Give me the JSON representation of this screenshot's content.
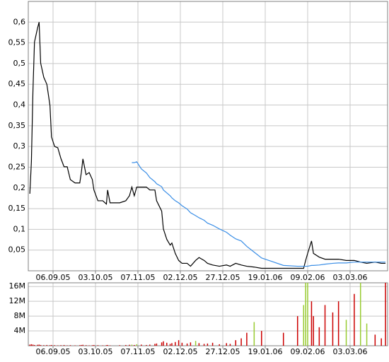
{
  "chart_data": [
    {
      "type": "line",
      "x": [
        "22.08.05",
        "23.08.05",
        "24.08.05",
        "25.08.05",
        "27.08.05",
        "28.08.05",
        "29.08.05",
        "31.08.05",
        "02.09.05",
        "04.09.05",
        "05.09.05",
        "07.09.05",
        "09.09.05",
        "11.09.05",
        "13.09.05",
        "15.09.05",
        "17.09.05",
        "20.09.05",
        "23.09.05",
        "24.09.05",
        "25.09.05",
        "27.09.05",
        "29.09.05",
        "01.10.05",
        "02.10.05",
        "05.10.05",
        "09.10.05",
        "12.10.05",
        "13.10.05",
        "15.10.05",
        "23.10.05",
        "28.10.05",
        "31.10.05",
        "02.11.05",
        "04.11.05",
        "06.11.05",
        "09.11.05",
        "12.11.05",
        "14.11.05",
        "17.11.05",
        "18.11.05",
        "21.11.05",
        "22.11.05",
        "24.11.05",
        "26.11.05",
        "27.11.05",
        "29.11.05",
        "01.12.05",
        "03.12.05",
        "06.12.05",
        "08.12.05",
        "11.12.05",
        "13.12.05",
        "16.12.05",
        "18.12.05",
        "21.12.05",
        "25.12.05",
        "29.12.05",
        "31.12.05",
        "03.01.06",
        "06.01.06",
        "09.01.06",
        "13.01.06",
        "17.01.06",
        "28.01.06",
        "04.02.06",
        "07.02.06",
        "08.02.06",
        "09.02.06",
        "11.02.06",
        "12.02.06",
        "15.02.06",
        "18.02.06",
        "22.02.06",
        "25.02.06",
        "01.03.06",
        "05.03.06",
        "08.03.06",
        "11.03.06",
        "15.03.06",
        "18.03.06",
        "20.03.06"
      ],
      "series": [
        {
          "color": "#000000",
          "values": [
            0.186,
            0.263,
            0.433,
            0.552,
            0.586,
            0.6,
            0.501,
            0.467,
            0.45,
            0.399,
            0.323,
            0.3,
            0.297,
            0.271,
            0.251,
            0.251,
            0.22,
            0.212,
            0.212,
            0.237,
            0.27,
            0.232,
            0.237,
            0.22,
            0.195,
            0.169,
            0.169,
            0.161,
            0.195,
            0.164,
            0.164,
            0.169,
            0.181,
            0.202,
            0.181,
            0.202,
            0.202,
            0.202,
            0.195,
            0.195,
            0.169,
            0.144,
            0.101,
            0.076,
            0.062,
            0.067,
            0.042,
            0.025,
            0.018,
            0.018,
            0.011,
            0.025,
            0.032,
            0.025,
            0.018,
            0.014,
            0.011,
            0.014,
            0.011,
            0.018,
            0.014,
            0.011,
            0.009,
            0.006,
            0.006,
            0.006,
            0.006,
            0.025,
            0.042,
            0.072,
            0.042,
            0.033,
            0.028,
            0.028,
            0.028,
            0.025,
            0.025,
            0.021,
            0.018,
            0.021,
            0.018,
            0.018
          ]
        },
        {
          "color": "#3a8ee6",
          "values": [
            null,
            null,
            null,
            null,
            null,
            null,
            null,
            null,
            null,
            null,
            null,
            null,
            null,
            null,
            null,
            null,
            null,
            null,
            null,
            null,
            null,
            null,
            null,
            null,
            null,
            null,
            null,
            null,
            null,
            null,
            null,
            null,
            null,
            0.261,
            0.261,
            0.263,
            0.246,
            0.236,
            0.225,
            0.215,
            0.21,
            0.203,
            0.195,
            0.188,
            0.181,
            0.176,
            0.169,
            0.164,
            0.157,
            0.149,
            0.14,
            0.133,
            0.128,
            0.122,
            0.115,
            0.11,
            0.101,
            0.093,
            0.086,
            0.077,
            0.072,
            0.059,
            0.045,
            0.031,
            0.013,
            0.011,
            0.011,
            0.011,
            0.011,
            0.013,
            0.013,
            0.014,
            0.016,
            0.018,
            0.019,
            0.019,
            0.021,
            0.021,
            0.021,
            0.021,
            0.021,
            0.021
          ]
        }
      ],
      "xlim": [
        "21.08.05",
        "21.03.06"
      ],
      "xticks": [
        "06.09.05",
        "03.10.05",
        "07.11.05",
        "02.12.05",
        "27.12.05",
        "19.01.06",
        "09.02.06",
        "03.03.06"
      ],
      "ylim": [
        0,
        0.65
      ],
      "yticks": [
        {
          "value": 0.05,
          "label": "0,05"
        },
        {
          "value": 0.1,
          "label": "0,1"
        },
        {
          "value": 0.15,
          "label": "0,15"
        },
        {
          "value": 0.2,
          "label": "0,2"
        },
        {
          "value": 0.25,
          "label": "0,25"
        },
        {
          "value": 0.3,
          "label": "0,3"
        },
        {
          "value": 0.35,
          "label": "0,35"
        },
        {
          "value": 0.4,
          "label": "0,4"
        },
        {
          "value": 0.45,
          "label": "0,45"
        },
        {
          "value": 0.5,
          "label": "0,5"
        },
        {
          "value": 0.55,
          "label": "0,55"
        },
        {
          "value": 0.6,
          "label": "0,6"
        }
      ],
      "grid": true
    },
    {
      "type": "bar",
      "x": [
        "22.08.05",
        "23.08.05",
        "24.08.05",
        "25.08.05",
        "27.08.05",
        "28.08.05",
        "29.08.05",
        "31.08.05",
        "02.09.05",
        "04.09.05",
        "05.09.05",
        "07.09.05",
        "09.09.05",
        "11.09.05",
        "13.09.05",
        "15.09.05",
        "17.09.05",
        "20.09.05",
        "23.09.05",
        "24.09.05",
        "25.09.05",
        "27.09.05",
        "29.09.05",
        "01.10.05",
        "02.10.05",
        "05.10.05",
        "09.10.05",
        "12.10.05",
        "13.10.05",
        "15.10.05",
        "23.10.05",
        "28.10.05",
        "31.10.05",
        "02.11.05",
        "04.11.05",
        "06.11.05",
        "09.11.05",
        "12.11.05",
        "14.11.05",
        "17.11.05",
        "18.11.05",
        "21.11.05",
        "22.11.05",
        "24.11.05",
        "26.11.05",
        "27.11.05",
        "29.11.05",
        "01.12.05",
        "03.12.05",
        "06.12.05",
        "08.12.05",
        "11.12.05",
        "13.12.05",
        "16.12.05",
        "18.12.05",
        "21.12.05",
        "25.12.05",
        "29.12.05",
        "31.12.05",
        "03.01.06",
        "06.01.06",
        "09.01.06",
        "13.01.06",
        "17.01.06",
        "28.01.06",
        "04.02.06",
        "07.02.06",
        "08.02.06",
        "09.02.06",
        "11.02.06",
        "12.02.06",
        "15.02.06",
        "18.02.06",
        "22.02.06",
        "25.02.06",
        "01.03.06",
        "05.03.06",
        "08.03.06",
        "11.03.06",
        "15.03.06",
        "18.03.06",
        "20.03.06"
      ],
      "values": [
        300000,
        400000,
        300000,
        200000,
        250000,
        300000,
        200000,
        150000,
        200000,
        150000,
        200000,
        150000,
        100000,
        150000,
        200000,
        100000,
        150000,
        100000,
        150000,
        200000,
        250000,
        150000,
        100000,
        150000,
        200000,
        150000,
        100000,
        150000,
        200000,
        100000,
        150000,
        200000,
        250000,
        300000,
        200000,
        400000,
        300000,
        200000,
        300000,
        500000,
        600000,
        900000,
        1200000,
        800000,
        500000,
        700000,
        1000000,
        1500000,
        800000,
        600000,
        900000,
        1300000,
        700000,
        500000,
        600000,
        800000,
        400000,
        700000,
        500000,
        1500000,
        2000000,
        3500000,
        6400000,
        4000000,
        3500000,
        8000000,
        11000000,
        17000000,
        17000000,
        12000000,
        8000000,
        5000000,
        11000000,
        9000000,
        12000000,
        7000000,
        14000000,
        17000000,
        6000000,
        3000000,
        2000000,
        17000000
      ],
      "colors": [
        "#cc0000",
        "#cc0000",
        "#cc0000",
        "#cc0000",
        "#cc0000",
        "#cc0000",
        "#cc0000",
        "#cc0000",
        "#cc0000",
        "#cc0000",
        "#cc0000",
        "#cc0000",
        "#cc0000",
        "#cc0000",
        "#cc0000",
        "#cc0000",
        "#cc0000",
        "#cc0000",
        "#cc0000",
        "#cc0000",
        "#cc0000",
        "#cc0000",
        "#cc0000",
        "#cc0000",
        "#cc0000",
        "#cc0000",
        "#cc0000",
        "#cc0000",
        "#cc0000",
        "#cc0000",
        "#cc0000",
        "#cc0000",
        "#cc0000",
        "#99cc33",
        "#cc0000",
        "#99cc33",
        "#cc0000",
        "#cc0000",
        "#cc0000",
        "#cc0000",
        "#cc0000",
        "#cc0000",
        "#cc0000",
        "#cc0000",
        "#cc0000",
        "#cc0000",
        "#cc0000",
        "#cc0000",
        "#cc0000",
        "#cc0000",
        "#cc0000",
        "#99cc33",
        "#cc0000",
        "#cc0000",
        "#cc0000",
        "#cc0000",
        "#cc0000",
        "#cc0000",
        "#cc0000",
        "#cc0000",
        "#cc0000",
        "#cc0000",
        "#99cc33",
        "#cc0000",
        "#cc0000",
        "#cc0000",
        "#99cc33",
        "#99cc33",
        "#99cc33",
        "#cc0000",
        "#cc0000",
        "#cc0000",
        "#cc0000",
        "#cc0000",
        "#cc0000",
        "#99cc33",
        "#cc0000",
        "#99cc33",
        "#99cc33",
        "#cc0000",
        "#cc0000",
        "#cc0000"
      ],
      "xlim": [
        "21.08.05",
        "21.03.06"
      ],
      "xticks": [
        "06.09.05",
        "03.10.05",
        "07.11.05",
        "02.12.05",
        "27.12.05",
        "19.01.06",
        "09.02.06",
        "03.03.06"
      ],
      "ylim": [
        0,
        17000000
      ],
      "yticks": [
        {
          "value": 4000000,
          "label": "4M"
        },
        {
          "value": 8000000,
          "label": "8M"
        },
        {
          "value": 12000000,
          "label": "12M"
        },
        {
          "value": 16000000,
          "label": "16M"
        }
      ],
      "grid": true
    }
  ]
}
